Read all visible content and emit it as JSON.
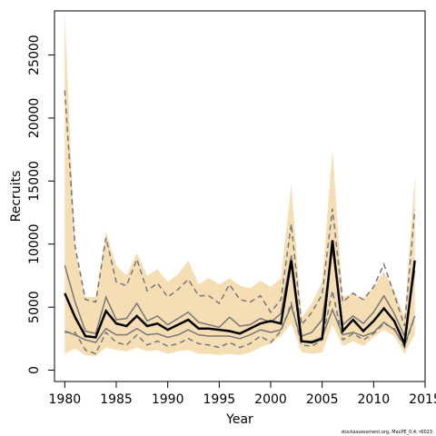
{
  "chart_data": {
    "type": "line",
    "title": "",
    "xlabel": "Year",
    "ylabel": "Recruits",
    "xlim": [
      1979,
      2015
    ],
    "ylim": [
      -900,
      28500
    ],
    "xticks": [
      1980,
      1985,
      1990,
      1995,
      2000,
      2005,
      2010,
      2015
    ],
    "yticks": [
      0,
      5000,
      10000,
      15000,
      20000,
      25000
    ],
    "grid": false,
    "legend": "none",
    "x": [
      1980,
      1981,
      1982,
      1983,
      1984,
      1985,
      1986,
      1987,
      1988,
      1989,
      1990,
      1991,
      1992,
      1993,
      1994,
      1995,
      1996,
      1997,
      1998,
      1999,
      2000,
      2001,
      2002,
      2003,
      2004,
      2005,
      2006,
      2007,
      2008,
      2009,
      2010,
      2011,
      2012,
      2013,
      2014
    ],
    "series": [
      {
        "role": "shaded-interval",
        "color": "#f5deb3",
        "upper": [
          28300,
          9500,
          5800,
          5800,
          11000,
          8300,
          7500,
          9300,
          7500,
          8000,
          7000,
          7600,
          8700,
          6800,
          7300,
          6800,
          7300,
          6700,
          6500,
          7100,
          6600,
          7300,
          14700,
          4200,
          5300,
          7000,
          17500,
          5800,
          6100,
          5600,
          6600,
          7800,
          6300,
          4200,
          15400
        ],
        "lower": [
          1300,
          1700,
          1200,
          1100,
          1800,
          1600,
          1500,
          1800,
          1500,
          1600,
          1300,
          1500,
          1600,
          1300,
          1300,
          1200,
          1300,
          1200,
          1400,
          1800,
          2100,
          2700,
          3700,
          1400,
          1300,
          1400,
          3600,
          1900,
          2300,
          1900,
          2600,
          3200,
          2700,
          1300,
          2800
        ]
      },
      {
        "role": "upper-dashed",
        "color": "#777777",
        "values": [
          22200,
          9800,
          5600,
          5400,
          10500,
          7000,
          6700,
          8800,
          6300,
          6900,
          5800,
          6400,
          7200,
          5900,
          5900,
          5300,
          6800,
          5600,
          5400,
          5900,
          4600,
          5600,
          11600,
          3600,
          4600,
          6000,
          12800,
          5400,
          6100,
          5600,
          6600,
          8400,
          6000,
          3500,
          12700
        ]
      },
      {
        "role": "upper-solid",
        "color": "#777777",
        "values": [
          8300,
          5400,
          3100,
          2900,
          5800,
          4000,
          4100,
          5300,
          3900,
          4300,
          3600,
          4100,
          4600,
          3800,
          3600,
          3400,
          4200,
          3500,
          3600,
          4100,
          3800,
          4500,
          9100,
          2700,
          3000,
          4000,
          9600,
          3600,
          4300,
          3700,
          4600,
          5900,
          4500,
          2700,
          7900
        ]
      },
      {
        "role": "estimate",
        "color": "#000000",
        "values": [
          6100,
          4200,
          2700,
          2600,
          4700,
          3700,
          3500,
          4300,
          3500,
          3700,
          3200,
          3600,
          4000,
          3300,
          3300,
          3200,
          3100,
          2900,
          3300,
          3700,
          3900,
          3700,
          8700,
          2300,
          2200,
          2500,
          10300,
          3100,
          4000,
          3100,
          3900,
          4900,
          3900,
          2100,
          8700
        ]
      },
      {
        "role": "lower-solid",
        "color": "#777777",
        "values": [
          3100,
          2800,
          2400,
          2200,
          3300,
          2800,
          2800,
          3300,
          2800,
          2900,
          2600,
          2800,
          3200,
          2800,
          2700,
          2700,
          2700,
          2500,
          2800,
          3200,
          3000,
          3200,
          5100,
          2300,
          2300,
          2600,
          4800,
          2800,
          3000,
          2700,
          3000,
          3800,
          3200,
          2000,
          4300
        ]
      },
      {
        "role": "lower-dashed",
        "color": "#777777",
        "values": [
          3000,
          3000,
          1600,
          1300,
          3000,
          2200,
          2000,
          2800,
          2000,
          2300,
          1900,
          2100,
          2500,
          2100,
          2000,
          1800,
          2200,
          1800,
          2100,
          2700,
          2200,
          3100,
          5300,
          2000,
          1900,
          2400,
          6300,
          2400,
          2900,
          2400,
          2900,
          3700,
          3300,
          1800,
          4300
        ]
      }
    ]
  },
  "footer_text": "stockassessment.org, MacPE_0.4, r6023"
}
